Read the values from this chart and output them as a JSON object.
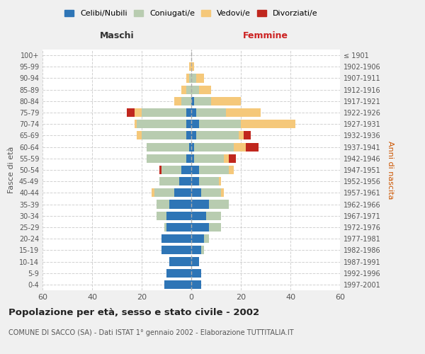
{
  "age_groups": [
    "0-4",
    "5-9",
    "10-14",
    "15-19",
    "20-24",
    "25-29",
    "30-34",
    "35-39",
    "40-44",
    "45-49",
    "50-54",
    "55-59",
    "60-64",
    "65-69",
    "70-74",
    "75-79",
    "80-84",
    "85-89",
    "90-94",
    "95-99",
    "100+"
  ],
  "birth_years": [
    "1997-2001",
    "1992-1996",
    "1987-1991",
    "1982-1986",
    "1977-1981",
    "1972-1976",
    "1967-1971",
    "1962-1966",
    "1957-1961",
    "1952-1956",
    "1947-1951",
    "1942-1946",
    "1937-1941",
    "1932-1936",
    "1927-1931",
    "1922-1926",
    "1917-1921",
    "1912-1916",
    "1907-1911",
    "1902-1906",
    "≤ 1901"
  ],
  "males": {
    "celibi": [
      11,
      10,
      9,
      12,
      12,
      10,
      10,
      9,
      7,
      5,
      4,
      2,
      1,
      2,
      2,
      2,
      0,
      0,
      0,
      0,
      0
    ],
    "coniugati": [
      0,
      0,
      0,
      0,
      0,
      1,
      4,
      5,
      8,
      8,
      8,
      16,
      17,
      18,
      20,
      18,
      4,
      2,
      1,
      0,
      0
    ],
    "vedovi": [
      0,
      0,
      0,
      0,
      0,
      0,
      0,
      0,
      1,
      0,
      0,
      0,
      0,
      2,
      1,
      3,
      3,
      2,
      1,
      1,
      0
    ],
    "divorziati": [
      0,
      0,
      0,
      0,
      0,
      0,
      0,
      0,
      0,
      0,
      1,
      0,
      0,
      0,
      0,
      3,
      0,
      0,
      0,
      0,
      0
    ]
  },
  "females": {
    "nubili": [
      4,
      4,
      3,
      4,
      5,
      7,
      6,
      7,
      4,
      3,
      3,
      1,
      1,
      2,
      3,
      2,
      1,
      0,
      0,
      0,
      0
    ],
    "coniugate": [
      0,
      0,
      0,
      1,
      2,
      5,
      6,
      8,
      8,
      8,
      12,
      12,
      16,
      17,
      17,
      12,
      7,
      3,
      2,
      0,
      0
    ],
    "vedove": [
      0,
      0,
      0,
      0,
      0,
      0,
      0,
      0,
      1,
      1,
      2,
      2,
      5,
      2,
      22,
      14,
      12,
      5,
      3,
      1,
      0
    ],
    "divorziate": [
      0,
      0,
      0,
      0,
      0,
      0,
      0,
      0,
      0,
      0,
      0,
      3,
      5,
      3,
      0,
      0,
      0,
      0,
      0,
      0,
      0
    ]
  },
  "colors": {
    "celibi": "#2e75b6",
    "coniugati": "#b8ccb0",
    "vedovi": "#f5c87a",
    "divorziati": "#c0271e"
  },
  "title": "Popolazione per età, sesso e stato civile - 2002",
  "subtitle": "COMUNE DI SACCO (SA) - Dati ISTAT 1° gennaio 2002 - Elaborazione TUTTITALIA.IT",
  "xlabel_left": "Maschi",
  "xlabel_right": "Femmine",
  "ylabel_left": "Fasce di età",
  "ylabel_right": "Anni di nascita",
  "xlim": 60,
  "legend_labels": [
    "Celibi/Nubili",
    "Coniugati/e",
    "Vedovi/e",
    "Divorziati/e"
  ],
  "bg_color": "#f0f0f0",
  "plot_bg": "#ffffff",
  "grid_color": "#cccccc"
}
